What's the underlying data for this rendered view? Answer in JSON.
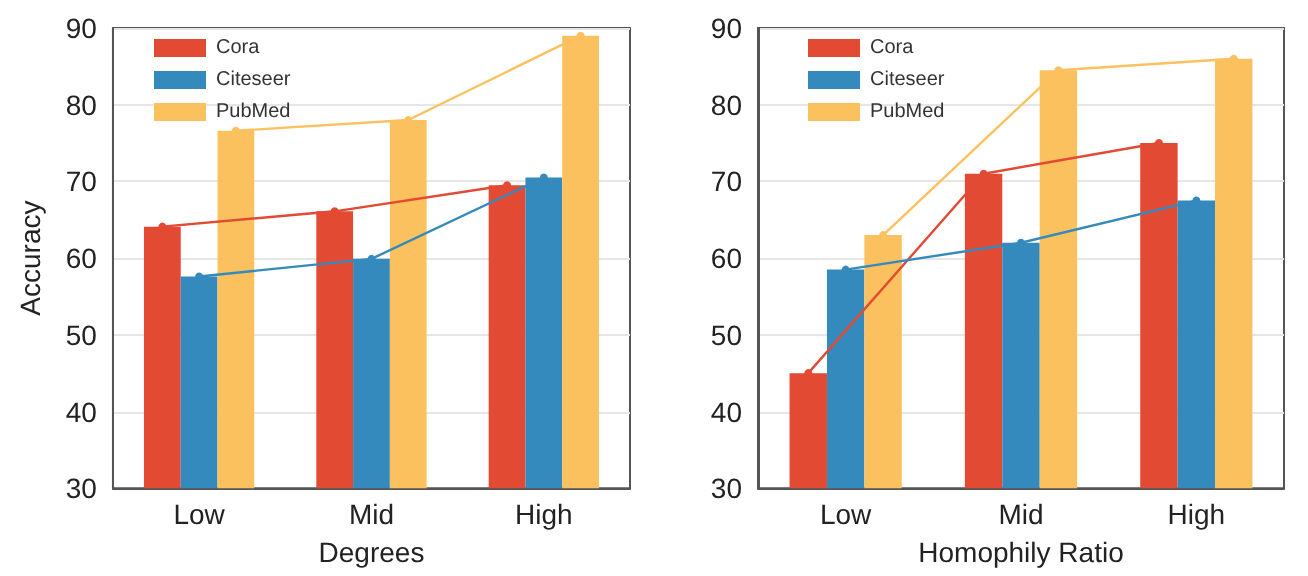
{
  "chart_data": [
    {
      "type": "bar",
      "categories": [
        "Low",
        "Mid",
        "High"
      ],
      "xlabel": "Degrees",
      "ylabel": "Accuracy",
      "ylim": [
        30,
        90
      ],
      "yticks": [
        30,
        40,
        50,
        60,
        70,
        80,
        90
      ],
      "grid": true,
      "legend": "top left",
      "series": [
        {
          "name": "Cora",
          "color": "#e24a33",
          "values": [
            64.1,
            66.1,
            69.5
          ]
        },
        {
          "name": "Citeseer",
          "color": "#348abd",
          "values": [
            57.6,
            59.9,
            70.5
          ]
        },
        {
          "name": "PubMed",
          "color": "#fbc15e",
          "values": [
            76.6,
            78.0,
            89.0
          ]
        },
        {
          "type": "line",
          "color": "#e24a33",
          "values": [
            64.1,
            66.1,
            69.5
          ],
          "marker": "circle"
        },
        {
          "type": "line",
          "color": "#348abd",
          "values": [
            57.6,
            59.9,
            70.5
          ],
          "marker": "circle"
        },
        {
          "type": "line",
          "color": "#fbc15e",
          "values": [
            76.6,
            78.0,
            89.0
          ],
          "marker": "circle"
        }
      ]
    },
    {
      "type": "bar",
      "categories": [
        "Low",
        "Mid",
        "High"
      ],
      "xlabel": "Homophily Ratio",
      "ylim": [
        30,
        90
      ],
      "yticks": [
        30,
        40,
        50,
        60,
        70,
        80,
        90
      ],
      "grid": true,
      "legend": "top left",
      "series": [
        {
          "name": "Cora",
          "color": "#e24a33",
          "values": [
            45.0,
            71.0,
            75.0
          ]
        },
        {
          "name": "Citeseer",
          "color": "#348abd",
          "values": [
            58.5,
            62.0,
            67.5
          ]
        },
        {
          "name": "PubMed",
          "color": "#fbc15e",
          "values": [
            63.0,
            84.5,
            86.0
          ]
        },
        {
          "type": "line",
          "color": "#e24a33",
          "values": [
            45.0,
            71.0,
            75.0
          ],
          "marker": "circle"
        },
        {
          "type": "line",
          "color": "#348abd",
          "values": [
            58.5,
            62.0,
            67.5
          ],
          "marker": "circle"
        },
        {
          "type": "line",
          "color": "#fbc15e",
          "values": [
            63.0,
            84.5,
            86.0
          ],
          "marker": "circle"
        }
      ]
    }
  ]
}
